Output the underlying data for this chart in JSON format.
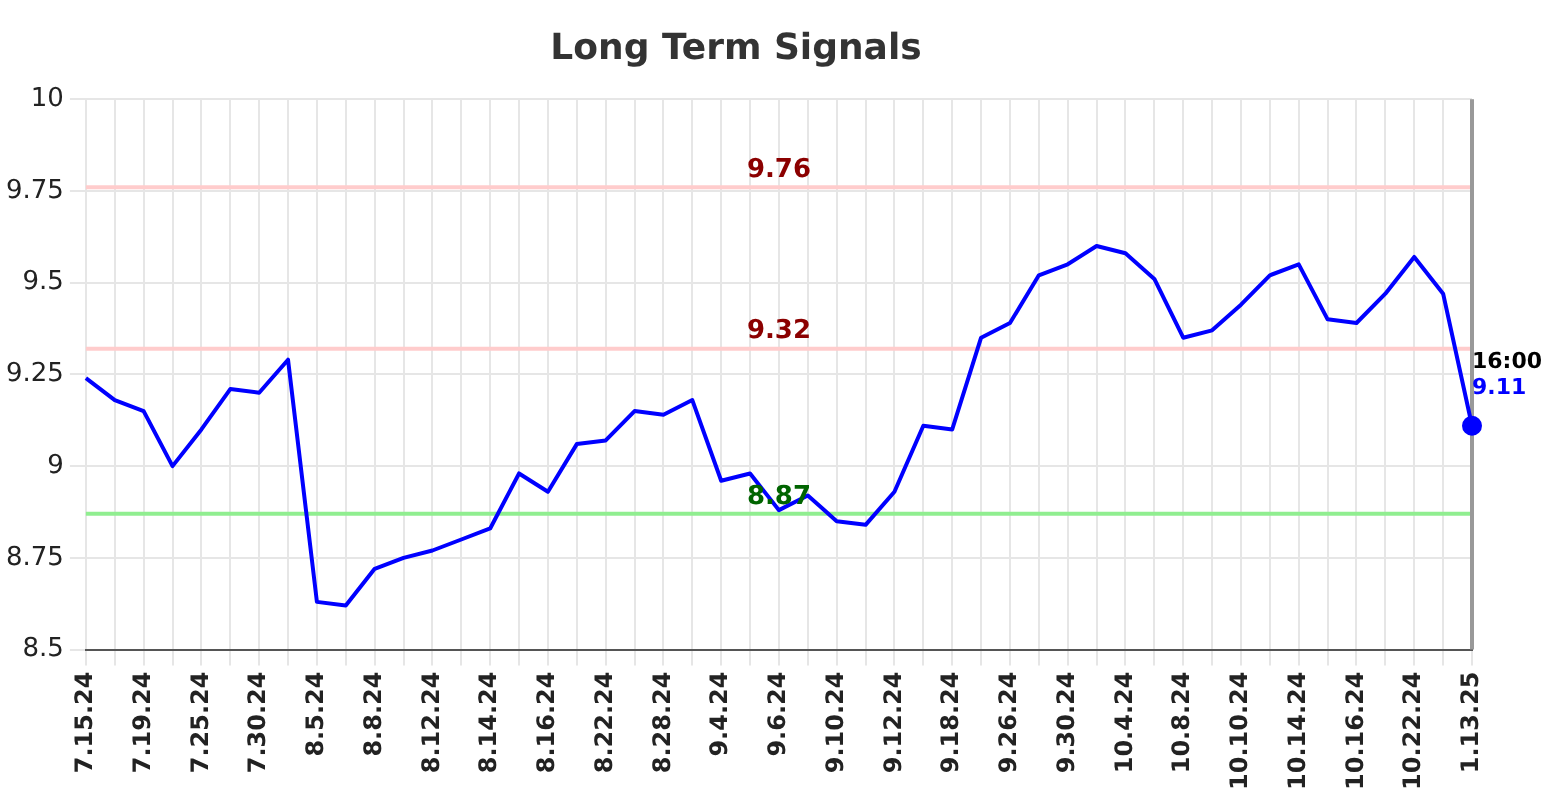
{
  "chart_data": {
    "type": "line",
    "title": "Long Term Signals",
    "categories": [
      "7.15.24",
      null,
      "7.19.24",
      null,
      "7.25.24",
      null,
      "7.30.24",
      null,
      "8.5.24",
      null,
      "8.8.24",
      null,
      "8.12.24",
      null,
      "8.14.24",
      null,
      "8.16.24",
      null,
      "8.22.24",
      null,
      "8.28.24",
      null,
      "9.4.24",
      null,
      "9.6.24",
      null,
      "9.10.24",
      null,
      "9.12.24",
      null,
      "9.18.24",
      null,
      "9.26.24",
      null,
      "9.30.24",
      null,
      "10.4.24",
      null,
      "10.8.24",
      null,
      "10.10.24",
      null,
      "10.14.24",
      null,
      "10.16.24",
      null,
      "10.22.24",
      null,
      "1.13.25"
    ],
    "series": [
      {
        "type": "line",
        "color": "#0000ff",
        "marker": "none",
        "values": [
          9.24,
          9.18,
          9.15,
          9.0,
          9.1,
          9.21,
          9.2,
          9.29,
          8.63,
          8.62,
          8.72,
          8.75,
          8.77,
          8.8,
          8.83,
          8.98,
          8.93,
          9.06,
          9.07,
          9.15,
          9.14,
          9.18,
          8.96,
          8.98,
          8.88,
          8.92,
          8.85,
          8.84,
          8.93,
          9.11,
          9.1,
          9.35,
          9.39,
          9.52,
          9.55,
          9.6,
          9.58,
          9.51,
          9.35,
          9.37,
          9.44,
          9.52,
          9.55,
          9.4,
          9.39,
          9.47,
          9.57,
          9.47,
          9.11
        ]
      },
      {
        "type": "scatter",
        "color": "#0000ff",
        "marker": "circle",
        "x": [
          "1.13.25"
        ],
        "values": [
          9.11
        ]
      }
    ],
    "ylim": [
      8.5,
      10
    ],
    "yticks": [
      8.5,
      8.75,
      9,
      9.25,
      9.5,
      9.75,
      10
    ],
    "grid": true,
    "legend": false,
    "ref_lines": [
      {
        "axis": "y",
        "value": 9.76,
        "label": "9.76",
        "color": "#ffcccc"
      },
      {
        "axis": "y",
        "value": 9.32,
        "label": "9.32",
        "color": "#ffcccc"
      },
      {
        "axis": "y",
        "value": 8.87,
        "label": "8.87",
        "color": "#90ee90"
      },
      {
        "axis": "x",
        "value": "1.13.25",
        "color": "#999999"
      }
    ],
    "annotations": [
      {
        "text": "16:00",
        "x": "1.13.25",
        "y": 9.11
      },
      {
        "text": "9.11",
        "x": "1.13.25",
        "y": 9.11
      }
    ]
  }
}
